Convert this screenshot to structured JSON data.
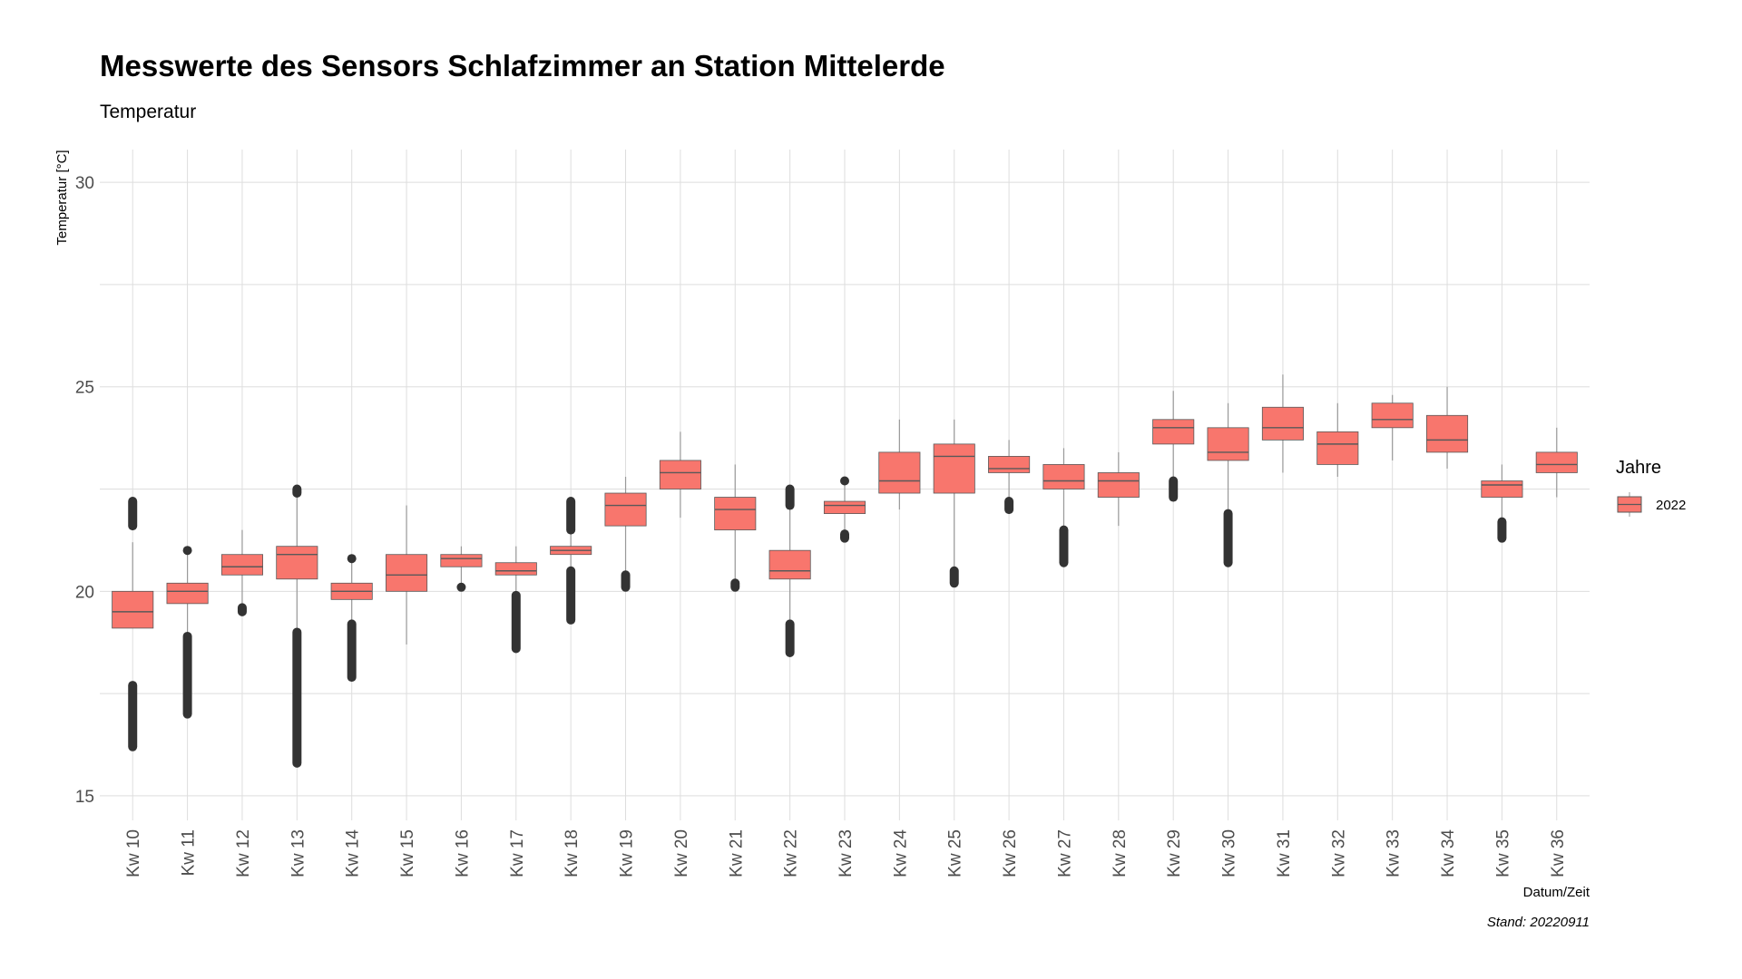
{
  "chart_data": {
    "type": "box",
    "title": "Messwerte des Sensors Schlafzimmer an Station Mittelerde",
    "subtitle": "Temperatur",
    "xlabel": "Datum/Zeit",
    "ylabel": "Temperatur [°C]",
    "caption": "Stand: 20220911",
    "ylim": [
      14.4,
      30.8
    ],
    "yticks": [
      15,
      20,
      25,
      30
    ],
    "grid": true,
    "legend": {
      "title": "Jahre",
      "position": "right",
      "entries": [
        "2022"
      ]
    },
    "colors": {
      "fill": "#f8766d",
      "stroke": "#595959",
      "outlier": "#333333",
      "whisker": "#999999"
    },
    "categories": [
      "Kw 10",
      "Kw 11",
      "Kw 12",
      "Kw 13",
      "Kw 14",
      "Kw 15",
      "Kw 16",
      "Kw 17",
      "Kw 18",
      "Kw 19",
      "Kw 20",
      "Kw 21",
      "Kw 22",
      "Kw 23",
      "Kw 24",
      "Kw 25",
      "Kw 26",
      "Kw 27",
      "Kw 28",
      "Kw 29",
      "Kw 30",
      "Kw 31",
      "Kw 32",
      "Kw 33",
      "Kw 34",
      "Kw 35",
      "Kw 36"
    ],
    "series": [
      {
        "name": "2022",
        "boxes": [
          {
            "whislo": 19.1,
            "q1": 19.1,
            "med": 19.5,
            "q3": 20.0,
            "whishi": 21.2,
            "outliers": [
              [
                16.2,
                17.7
              ],
              [
                21.6,
                22.2
              ]
            ]
          },
          {
            "whislo": 19.0,
            "q1": 19.7,
            "med": 20.0,
            "q3": 20.2,
            "whishi": 20.9,
            "outliers": [
              [
                17.0,
                18.9
              ],
              [
                21.0,
                21.0
              ]
            ]
          },
          {
            "whislo": 19.7,
            "q1": 20.4,
            "med": 20.6,
            "q3": 20.9,
            "whishi": 21.5,
            "outliers": [
              [
                19.5,
                19.6
              ]
            ]
          },
          {
            "whislo": 19.1,
            "q1": 20.3,
            "med": 20.9,
            "q3": 21.1,
            "whishi": 22.3,
            "outliers": [
              [
                15.8,
                19.0
              ],
              [
                22.4,
                22.5
              ]
            ]
          },
          {
            "whislo": 19.3,
            "q1": 19.8,
            "med": 20.0,
            "q3": 20.2,
            "whishi": 20.7,
            "outliers": [
              [
                17.9,
                19.2
              ],
              [
                20.8,
                20.8
              ]
            ]
          },
          {
            "whislo": 18.7,
            "q1": 20.0,
            "med": 20.4,
            "q3": 20.9,
            "whishi": 22.1,
            "outliers": []
          },
          {
            "whislo": 20.2,
            "q1": 20.6,
            "med": 20.8,
            "q3": 20.9,
            "whishi": 21.1,
            "outliers": [
              [
                20.1,
                20.1
              ]
            ]
          },
          {
            "whislo": 20.0,
            "q1": 20.4,
            "med": 20.5,
            "q3": 20.7,
            "whishi": 21.1,
            "outliers": [
              [
                18.6,
                19.9
              ]
            ]
          },
          {
            "whislo": 20.6,
            "q1": 20.9,
            "med": 21.0,
            "q3": 21.1,
            "whishi": 21.4,
            "outliers": [
              [
                19.3,
                20.5
              ],
              [
                21.5,
                22.2
              ]
            ]
          },
          {
            "whislo": 20.5,
            "q1": 21.6,
            "med": 22.1,
            "q3": 22.4,
            "whishi": 22.8,
            "outliers": [
              [
                20.1,
                20.4
              ]
            ]
          },
          {
            "whislo": 21.8,
            "q1": 22.5,
            "med": 22.9,
            "q3": 23.2,
            "whishi": 23.9,
            "outliers": []
          },
          {
            "whislo": 20.3,
            "q1": 21.5,
            "med": 22.0,
            "q3": 22.3,
            "whishi": 23.1,
            "outliers": [
              [
                20.1,
                20.2
              ]
            ]
          },
          {
            "whislo": 19.3,
            "q1": 20.3,
            "med": 20.5,
            "q3": 21.0,
            "whishi": 22.0,
            "outliers": [
              [
                18.5,
                19.2
              ],
              [
                22.1,
                22.5
              ]
            ]
          },
          {
            "whislo": 21.5,
            "q1": 21.9,
            "med": 22.1,
            "q3": 22.2,
            "whishi": 22.6,
            "outliers": [
              [
                21.3,
                21.4
              ],
              [
                22.7,
                22.7
              ]
            ]
          },
          {
            "whislo": 22.0,
            "q1": 22.4,
            "med": 22.7,
            "q3": 23.4,
            "whishi": 24.2,
            "outliers": []
          },
          {
            "whislo": 20.6,
            "q1": 22.4,
            "med": 23.3,
            "q3": 23.6,
            "whishi": 24.2,
            "outliers": [
              [
                20.2,
                20.5
              ]
            ]
          },
          {
            "whislo": 22.3,
            "q1": 22.9,
            "med": 23.0,
            "q3": 23.3,
            "whishi": 23.7,
            "outliers": [
              [
                22.0,
                22.2
              ]
            ]
          },
          {
            "whislo": 21.6,
            "q1": 22.5,
            "med": 22.7,
            "q3": 23.1,
            "whishi": 23.5,
            "outliers": [
              [
                20.7,
                21.5
              ]
            ]
          },
          {
            "whislo": 21.6,
            "q1": 22.3,
            "med": 22.7,
            "q3": 22.9,
            "whishi": 23.4,
            "outliers": []
          },
          {
            "whislo": 22.8,
            "q1": 23.6,
            "med": 24.0,
            "q3": 24.2,
            "whishi": 24.9,
            "outliers": [
              [
                22.3,
                22.7
              ]
            ]
          },
          {
            "whislo": 22.0,
            "q1": 23.2,
            "med": 23.4,
            "q3": 24.0,
            "whishi": 24.6,
            "outliers": [
              [
                20.7,
                21.9
              ]
            ]
          },
          {
            "whislo": 22.9,
            "q1": 23.7,
            "med": 24.0,
            "q3": 24.5,
            "whishi": 25.3,
            "outliers": []
          },
          {
            "whislo": 22.8,
            "q1": 23.1,
            "med": 23.6,
            "q3": 23.9,
            "whishi": 24.6,
            "outliers": []
          },
          {
            "whislo": 23.2,
            "q1": 24.0,
            "med": 24.2,
            "q3": 24.6,
            "whishi": 24.8,
            "outliers": []
          },
          {
            "whislo": 23.0,
            "q1": 23.4,
            "med": 23.7,
            "q3": 24.3,
            "whishi": 25.0,
            "outliers": []
          },
          {
            "whislo": 21.8,
            "q1": 22.3,
            "med": 22.6,
            "q3": 22.7,
            "whishi": 23.1,
            "outliers": [
              [
                21.3,
                21.7
              ]
            ]
          },
          {
            "whislo": 22.3,
            "q1": 22.9,
            "med": 23.1,
            "q3": 23.4,
            "whishi": 24.0,
            "outliers": []
          }
        ]
      }
    ]
  }
}
